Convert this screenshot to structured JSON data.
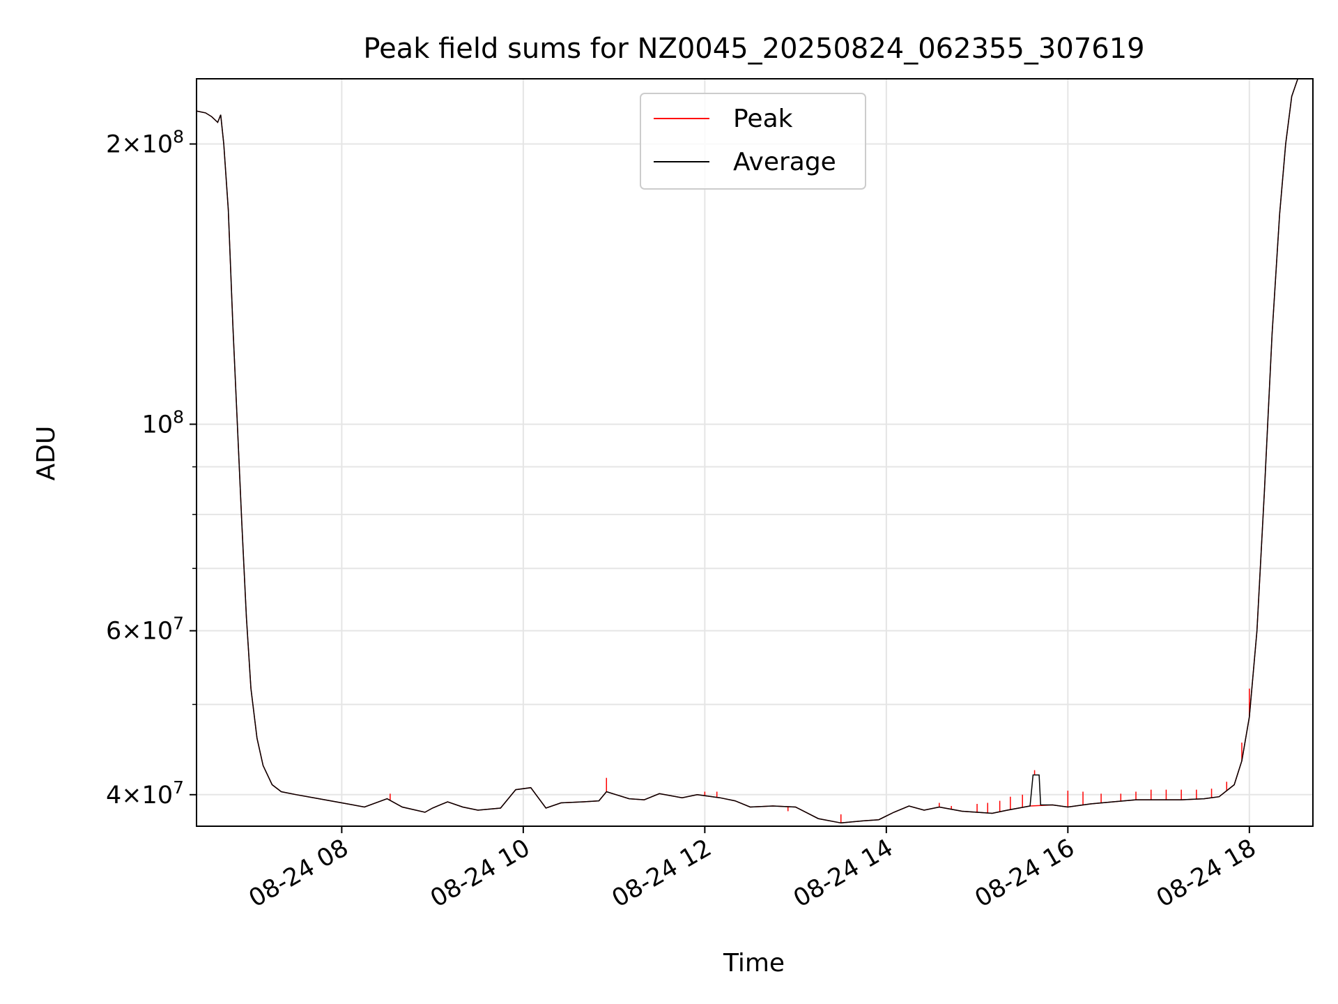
{
  "chart_data": {
    "type": "line",
    "title": "Peak field sums for NZ0045_20250824_062355_307619",
    "xlabel": "Time",
    "ylabel": "ADU",
    "xlim": [
      "2025-08-24 06:24",
      "2025-08-24 18:42"
    ],
    "ylim": [
      37000000.0,
      235000000.0
    ],
    "yscale": "log",
    "grid": true,
    "legend_position": "upper center",
    "x_ticks": [
      {
        "time": "2025-08-24 08:00",
        "label": "08-24 08"
      },
      {
        "time": "2025-08-24 10:00",
        "label": "08-24 10"
      },
      {
        "time": "2025-08-24 12:00",
        "label": "08-24 12"
      },
      {
        "time": "2025-08-24 14:00",
        "label": "08-24 14"
      },
      {
        "time": "2025-08-24 16:00",
        "label": "08-24 16"
      },
      {
        "time": "2025-08-24 18:00",
        "label": "08-24 18"
      }
    ],
    "y_major_ticks": [
      {
        "value": 40000000.0,
        "mantissa": "4",
        "exponent": "7"
      },
      {
        "value": 60000000.0,
        "mantissa": "6",
        "exponent": "7"
      },
      {
        "value": 100000000.0,
        "mantissa": "",
        "exponent": "8"
      },
      {
        "value": 200000000.0,
        "mantissa": "2",
        "exponent": "8"
      }
    ],
    "y_minor_ticks": [
      50000000.0,
      70000000.0,
      80000000.0,
      90000000.0
    ],
    "series": [
      {
        "name": "Peak",
        "color": "#ff0000",
        "points": [
          [
            "2025-08-24 06:24",
            217000000.0
          ],
          [
            "2025-08-24 06:30",
            216000000.0
          ],
          [
            "2025-08-24 06:34",
            214000000.0
          ],
          [
            "2025-08-24 06:38",
            211000000.0
          ],
          [
            "2025-08-24 06:40",
            215000000.0
          ],
          [
            "2025-08-24 06:42",
            200000000.0
          ],
          [
            "2025-08-24 06:45",
            170000000.0
          ],
          [
            "2025-08-24 06:48",
            128000000.0
          ],
          [
            "2025-08-24 06:51",
            100000000.0
          ],
          [
            "2025-08-24 06:54",
            78000000.0
          ],
          [
            "2025-08-24 06:57",
            62000000.0
          ],
          [
            "2025-08-24 07:00",
            52000000.0
          ],
          [
            "2025-08-24 07:04",
            46000000.0
          ],
          [
            "2025-08-24 07:08",
            43000000.0
          ],
          [
            "2025-08-24 07:14",
            41000000.0
          ],
          [
            "2025-08-24 07:20",
            40300000.0
          ],
          [
            "2025-08-24 07:30",
            40000000.0
          ],
          [
            "2025-08-24 07:45",
            39600000.0
          ],
          [
            "2025-08-24 08:00",
            39200000.0
          ],
          [
            "2025-08-24 08:15",
            38800000.0
          ],
          [
            "2025-08-24 08:30",
            39600000.0
          ],
          [
            "2025-08-24 08:40",
            38800000.0
          ],
          [
            "2025-08-24 08:55",
            38300000.0
          ],
          [
            "2025-08-24 09:00",
            38700000.0
          ],
          [
            "2025-08-24 09:10",
            39300000.0
          ],
          [
            "2025-08-24 09:20",
            38800000.0
          ],
          [
            "2025-08-24 09:30",
            38500000.0
          ],
          [
            "2025-08-24 09:45",
            38700000.0
          ],
          [
            "2025-08-24 09:55",
            40500000.0
          ],
          [
            "2025-08-24 10:05",
            40700000.0
          ],
          [
            "2025-08-24 10:15",
            38700000.0
          ],
          [
            "2025-08-24 10:25",
            39200000.0
          ],
          [
            "2025-08-24 10:40",
            39300000.0
          ],
          [
            "2025-08-24 10:50",
            39400000.0
          ],
          [
            "2025-08-24 10:55",
            40300000.0
          ],
          [
            "2025-08-24 11:10",
            39600000.0
          ],
          [
            "2025-08-24 11:20",
            39500000.0
          ],
          [
            "2025-08-24 11:30",
            40100000.0
          ],
          [
            "2025-08-24 11:45",
            39700000.0
          ],
          [
            "2025-08-24 11:55",
            40000000.0
          ],
          [
            "2025-08-24 12:10",
            39700000.0
          ],
          [
            "2025-08-24 12:20",
            39400000.0
          ],
          [
            "2025-08-24 12:30",
            38800000.0
          ],
          [
            "2025-08-24 12:45",
            38900000.0
          ],
          [
            "2025-08-24 13:00",
            38800000.0
          ],
          [
            "2025-08-24 13:15",
            37700000.0
          ],
          [
            "2025-08-24 13:30",
            37300000.0
          ],
          [
            "2025-08-24 13:45",
            37500000.0
          ],
          [
            "2025-08-24 13:55",
            37600000.0
          ],
          [
            "2025-08-24 14:05",
            38300000.0
          ],
          [
            "2025-08-24 14:15",
            38900000.0
          ],
          [
            "2025-08-24 14:25",
            38500000.0
          ],
          [
            "2025-08-24 14:35",
            38800000.0
          ],
          [
            "2025-08-24 14:50",
            38400000.0
          ],
          [
            "2025-08-24 15:00",
            38300000.0
          ],
          [
            "2025-08-24 15:10",
            38200000.0
          ],
          [
            "2025-08-24 15:20",
            38500000.0
          ],
          [
            "2025-08-24 15:35",
            38900000.0
          ],
          [
            "2025-08-24 15:50",
            39000000.0
          ],
          [
            "2025-08-24 16:00",
            38800000.0
          ],
          [
            "2025-08-24 16:15",
            39100000.0
          ],
          [
            "2025-08-24 16:30",
            39300000.0
          ],
          [
            "2025-08-24 16:45",
            39500000.0
          ],
          [
            "2025-08-24 17:00",
            39500000.0
          ],
          [
            "2025-08-24 17:15",
            39500000.0
          ],
          [
            "2025-08-24 17:30",
            39600000.0
          ],
          [
            "2025-08-24 17:40",
            39800000.0
          ],
          [
            "2025-08-24 17:50",
            41000000.0
          ],
          [
            "2025-08-24 17:55",
            43500000.0
          ],
          [
            "2025-08-24 18:00",
            48500000.0
          ],
          [
            "2025-08-24 18:05",
            60000000.0
          ],
          [
            "2025-08-24 18:10",
            85000000.0
          ],
          [
            "2025-08-24 18:15",
            125000000.0
          ],
          [
            "2025-08-24 18:20",
            168000000.0
          ],
          [
            "2025-08-24 18:24",
            200000000.0
          ],
          [
            "2025-08-24 18:28",
            225000000.0
          ],
          [
            "2025-08-24 18:32",
            235000000.0
          ],
          [
            "2025-08-24 18:42",
            235000000.0
          ]
        ]
      },
      {
        "name": "Average",
        "color": "#000000",
        "points": [
          [
            "2025-08-24 06:24",
            217000000.0
          ],
          [
            "2025-08-24 06:30",
            216000000.0
          ],
          [
            "2025-08-24 06:34",
            214000000.0
          ],
          [
            "2025-08-24 06:38",
            211000000.0
          ],
          [
            "2025-08-24 06:40",
            215000000.0
          ],
          [
            "2025-08-24 06:42",
            200000000.0
          ],
          [
            "2025-08-24 06:45",
            170000000.0
          ],
          [
            "2025-08-24 06:48",
            128000000.0
          ],
          [
            "2025-08-24 06:51",
            100000000.0
          ],
          [
            "2025-08-24 06:54",
            78000000.0
          ],
          [
            "2025-08-24 06:57",
            62000000.0
          ],
          [
            "2025-08-24 07:00",
            52000000.0
          ],
          [
            "2025-08-24 07:04",
            46000000.0
          ],
          [
            "2025-08-24 07:08",
            43000000.0
          ],
          [
            "2025-08-24 07:14",
            41000000.0
          ],
          [
            "2025-08-24 07:20",
            40300000.0
          ],
          [
            "2025-08-24 07:30",
            40000000.0
          ],
          [
            "2025-08-24 07:45",
            39600000.0
          ],
          [
            "2025-08-24 08:00",
            39200000.0
          ],
          [
            "2025-08-24 08:15",
            38800000.0
          ],
          [
            "2025-08-24 08:30",
            39600000.0
          ],
          [
            "2025-08-24 08:40",
            38800000.0
          ],
          [
            "2025-08-24 08:55",
            38300000.0
          ],
          [
            "2025-08-24 09:00",
            38700000.0
          ],
          [
            "2025-08-24 09:10",
            39300000.0
          ],
          [
            "2025-08-24 09:20",
            38800000.0
          ],
          [
            "2025-08-24 09:30",
            38500000.0
          ],
          [
            "2025-08-24 09:45",
            38700000.0
          ],
          [
            "2025-08-24 09:55",
            40500000.0
          ],
          [
            "2025-08-24 10:05",
            40700000.0
          ],
          [
            "2025-08-24 10:15",
            38700000.0
          ],
          [
            "2025-08-24 10:25",
            39200000.0
          ],
          [
            "2025-08-24 10:40",
            39300000.0
          ],
          [
            "2025-08-24 10:50",
            39400000.0
          ],
          [
            "2025-08-24 10:55",
            40300000.0
          ],
          [
            "2025-08-24 11:10",
            39600000.0
          ],
          [
            "2025-08-24 11:20",
            39500000.0
          ],
          [
            "2025-08-24 11:30",
            40100000.0
          ],
          [
            "2025-08-24 11:45",
            39700000.0
          ],
          [
            "2025-08-24 11:55",
            40000000.0
          ],
          [
            "2025-08-24 12:10",
            39700000.0
          ],
          [
            "2025-08-24 12:20",
            39400000.0
          ],
          [
            "2025-08-24 12:30",
            38800000.0
          ],
          [
            "2025-08-24 12:45",
            38900000.0
          ],
          [
            "2025-08-24 13:00",
            38800000.0
          ],
          [
            "2025-08-24 13:15",
            37700000.0
          ],
          [
            "2025-08-24 13:30",
            37300000.0
          ],
          [
            "2025-08-24 13:45",
            37500000.0
          ],
          [
            "2025-08-24 13:55",
            37600000.0
          ],
          [
            "2025-08-24 14:05",
            38300000.0
          ],
          [
            "2025-08-24 14:15",
            38900000.0
          ],
          [
            "2025-08-24 14:25",
            38500000.0
          ],
          [
            "2025-08-24 14:35",
            38800000.0
          ],
          [
            "2025-08-24 14:50",
            38400000.0
          ],
          [
            "2025-08-24 15:00",
            38300000.0
          ],
          [
            "2025-08-24 15:10",
            38200000.0
          ],
          [
            "2025-08-24 15:20",
            38500000.0
          ],
          [
            "2025-08-24 15:35",
            38900000.0
          ],
          [
            "2025-08-24 15:37",
            42000000.0
          ],
          [
            "2025-08-24 15:41",
            42000000.0
          ],
          [
            "2025-08-24 15:42",
            39000000.0
          ],
          [
            "2025-08-24 15:50",
            39000000.0
          ],
          [
            "2025-08-24 16:00",
            38800000.0
          ],
          [
            "2025-08-24 16:15",
            39100000.0
          ],
          [
            "2025-08-24 16:30",
            39300000.0
          ],
          [
            "2025-08-24 16:45",
            39500000.0
          ],
          [
            "2025-08-24 17:00",
            39500000.0
          ],
          [
            "2025-08-24 17:15",
            39500000.0
          ],
          [
            "2025-08-24 17:30",
            39600000.0
          ],
          [
            "2025-08-24 17:40",
            39800000.0
          ],
          [
            "2025-08-24 17:50",
            41000000.0
          ],
          [
            "2025-08-24 17:55",
            43500000.0
          ],
          [
            "2025-08-24 18:00",
            48500000.0
          ],
          [
            "2025-08-24 18:05",
            60000000.0
          ],
          [
            "2025-08-24 18:10",
            85000000.0
          ],
          [
            "2025-08-24 18:15",
            125000000.0
          ],
          [
            "2025-08-24 18:20",
            168000000.0
          ],
          [
            "2025-08-24 18:24",
            200000000.0
          ],
          [
            "2025-08-24 18:28",
            225000000.0
          ],
          [
            "2025-08-24 18:32",
            235000000.0
          ],
          [
            "2025-08-24 18:42",
            235000000.0
          ]
        ]
      }
    ],
    "peak_spikes": [
      [
        "2025-08-24 08:32",
        40100000.0
      ],
      [
        "2025-08-24 10:55",
        41700000.0
      ],
      [
        "2025-08-24 12:00",
        40300000.0
      ],
      [
        "2025-08-24 12:08",
        40300000.0
      ],
      [
        "2025-08-24 12:55",
        38400000.0
      ],
      [
        "2025-08-24 13:30",
        38100000.0
      ],
      [
        "2025-08-24 14:35",
        39200000.0
      ],
      [
        "2025-08-24 14:43",
        38900000.0
      ],
      [
        "2025-08-24 15:00",
        39100000.0
      ],
      [
        "2025-08-24 15:07",
        39200000.0
      ],
      [
        "2025-08-24 15:15",
        39400000.0
      ],
      [
        "2025-08-24 15:22",
        39800000.0
      ],
      [
        "2025-08-24 15:30",
        40000000.0
      ],
      [
        "2025-08-24 15:38",
        42500000.0
      ],
      [
        "2025-08-24 16:00",
        40400000.0
      ],
      [
        "2025-08-24 16:10",
        40300000.0
      ],
      [
        "2025-08-24 16:22",
        40100000.0
      ],
      [
        "2025-08-24 16:35",
        40100000.0
      ],
      [
        "2025-08-24 16:45",
        40300000.0
      ],
      [
        "2025-08-24 16:55",
        40500000.0
      ],
      [
        "2025-08-24 17:05",
        40500000.0
      ],
      [
        "2025-08-24 17:15",
        40500000.0
      ],
      [
        "2025-08-24 17:25",
        40500000.0
      ],
      [
        "2025-08-24 17:35",
        40600000.0
      ],
      [
        "2025-08-24 17:45",
        41300000.0
      ],
      [
        "2025-08-24 17:55",
        45500000.0
      ],
      [
        "2025-08-24 18:00",
        52000000.0
      ]
    ]
  }
}
